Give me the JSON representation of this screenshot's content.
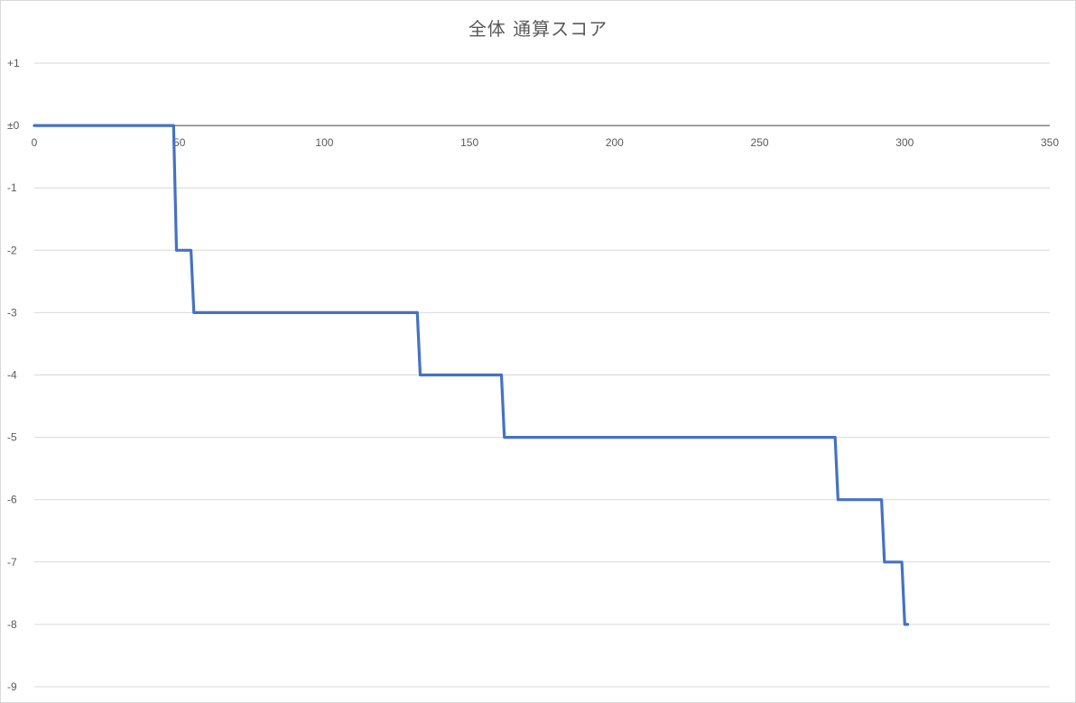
{
  "chart_data": {
    "type": "line",
    "title": "全体 通算スコア",
    "xlabel": "",
    "ylabel": "",
    "xlim": [
      0,
      350
    ],
    "ylim": [
      -9,
      1
    ],
    "x_ticks": [
      {
        "value": 0,
        "label": "0"
      },
      {
        "value": 50,
        "label": "50"
      },
      {
        "value": 100,
        "label": "100"
      },
      {
        "value": 150,
        "label": "150"
      },
      {
        "value": 200,
        "label": "200"
      },
      {
        "value": 250,
        "label": "250"
      },
      {
        "value": 300,
        "label": "300"
      },
      {
        "value": 350,
        "label": "350"
      }
    ],
    "y_ticks": [
      {
        "value": 1,
        "label": "+1"
      },
      {
        "value": 0,
        "label": "±0"
      },
      {
        "value": -1,
        "label": "-1"
      },
      {
        "value": -2,
        "label": "-2"
      },
      {
        "value": -3,
        "label": "-3"
      },
      {
        "value": -4,
        "label": "-4"
      },
      {
        "value": -5,
        "label": "-5"
      },
      {
        "value": -6,
        "label": "-6"
      },
      {
        "value": -7,
        "label": "-7"
      },
      {
        "value": -8,
        "label": "-8"
      },
      {
        "value": -9,
        "label": "-9"
      }
    ],
    "grid": true,
    "legend": "none",
    "series": [
      {
        "color": "#4472C4",
        "x": [
          0,
          48,
          49,
          54,
          55,
          132,
          133,
          161,
          162,
          276,
          277,
          292,
          293,
          299,
          300,
          301
        ],
        "y": [
          0,
          0,
          -2,
          -2,
          -3,
          -3,
          -4,
          -4,
          -5,
          -5,
          -6,
          -6,
          -7,
          -7,
          -8,
          -8
        ]
      }
    ]
  }
}
